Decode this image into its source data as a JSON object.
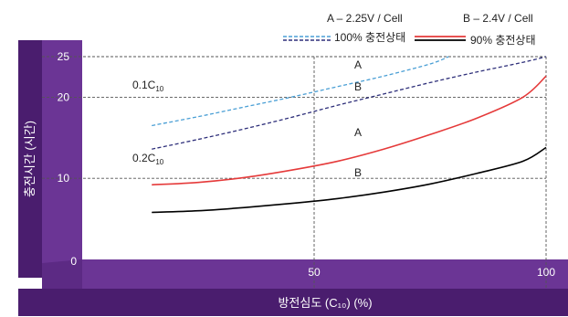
{
  "chart_data": {
    "type": "line",
    "xlabel": "방전심도 (C₁₀) (%)",
    "ylabel": "충전시간 (시간)",
    "xlim": [
      0,
      100
    ],
    "ylim": [
      0,
      25
    ],
    "x_ticks": [
      "0",
      "50",
      "100"
    ],
    "y_ticks": [
      "10",
      "20",
      "25"
    ],
    "grid": true,
    "legend": {
      "voltage_a": "A – 2.25V / Cell",
      "voltage_b": "B – 2.4V / Cell",
      "dashed_label": "100% 충전상태",
      "solid_label": "90% 충전상태"
    },
    "annotations": {
      "rate_01": "0.1C",
      "rate_02": "0.2C",
      "subscript": "10",
      "curve_a": "A",
      "curve_b": "B"
    },
    "series": [
      {
        "style": "dashed",
        "color": "#4a9fd5",
        "x": [
          15,
          25,
          35,
          45,
          55,
          65,
          75,
          79
        ],
        "y": [
          16.5,
          17.6,
          18.8,
          20.0,
          21.3,
          22.6,
          24.1,
          25.0
        ]
      },
      {
        "style": "dashed",
        "color": "#2e2f7a",
        "x": [
          15,
          25,
          35,
          45,
          55,
          65,
          75,
          85,
          95,
          100
        ],
        "y": [
          13.6,
          14.8,
          16.1,
          17.5,
          19.0,
          20.4,
          21.8,
          23.1,
          24.3,
          25.0
        ]
      },
      {
        "style": "solid",
        "color": "#e53a3a",
        "x": [
          15,
          25,
          35,
          45,
          55,
          65,
          75,
          85,
          95,
          100
        ],
        "y": [
          9.2,
          9.5,
          10.1,
          11.0,
          12.1,
          13.6,
          15.4,
          17.4,
          20.0,
          22.6
        ]
      },
      {
        "style": "solid",
        "color": "#000000",
        "x": [
          15,
          25,
          35,
          45,
          55,
          65,
          75,
          85,
          95,
          100
        ],
        "y": [
          5.8,
          6.0,
          6.4,
          6.9,
          7.5,
          8.3,
          9.3,
          10.6,
          12.1,
          13.8
        ]
      }
    ]
  },
  "colors": {
    "frame_dark": "#4a1d6e",
    "frame_mid": "#5c2a84",
    "frame_light": "#6b3595"
  }
}
